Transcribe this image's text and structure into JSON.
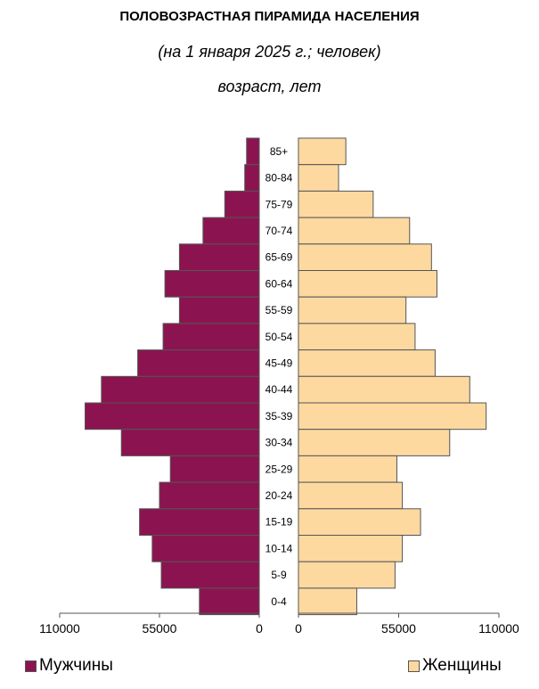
{
  "chart_data": {
    "type": "bar",
    "orientation": "horizontal-pyramid",
    "title": "ПОЛОВОЗРАСТНАЯ ПИРАМИДА НАСЕЛЕНИЯ",
    "subtitle": "(на 1 января 2025 г.; человек)",
    "ylabel": "возраст, лет",
    "categories": [
      "85+",
      "80-84",
      "75-79",
      "70-74",
      "65-69",
      "60-64",
      "55-59",
      "50-54",
      "45-49",
      "40-44",
      "35-39",
      "30-34",
      "25-29",
      "20-24",
      "15-19",
      "10-14",
      "5-9",
      "0-4"
    ],
    "series": [
      {
        "name": "Мужчины",
        "color": "#8b1450",
        "values": [
          7000,
          8000,
          19000,
          31000,
          44000,
          52000,
          44000,
          53000,
          67000,
          87000,
          96000,
          76000,
          49000,
          55000,
          66000,
          59000,
          54000,
          33000
        ]
      },
      {
        "name": "Женщины",
        "color": "#fdd9a0",
        "values": [
          26000,
          22000,
          41000,
          61000,
          73000,
          76000,
          59000,
          64000,
          75000,
          94000,
          103000,
          83000,
          54000,
          57000,
          67000,
          57000,
          53000,
          32000
        ]
      }
    ],
    "xlim": [
      0,
      110000
    ],
    "xticks_left": [
      "110000",
      "55000",
      "0"
    ],
    "xticks_right": [
      "0",
      "55000",
      "110000"
    ],
    "legend_position": "bottom",
    "grid": false
  }
}
